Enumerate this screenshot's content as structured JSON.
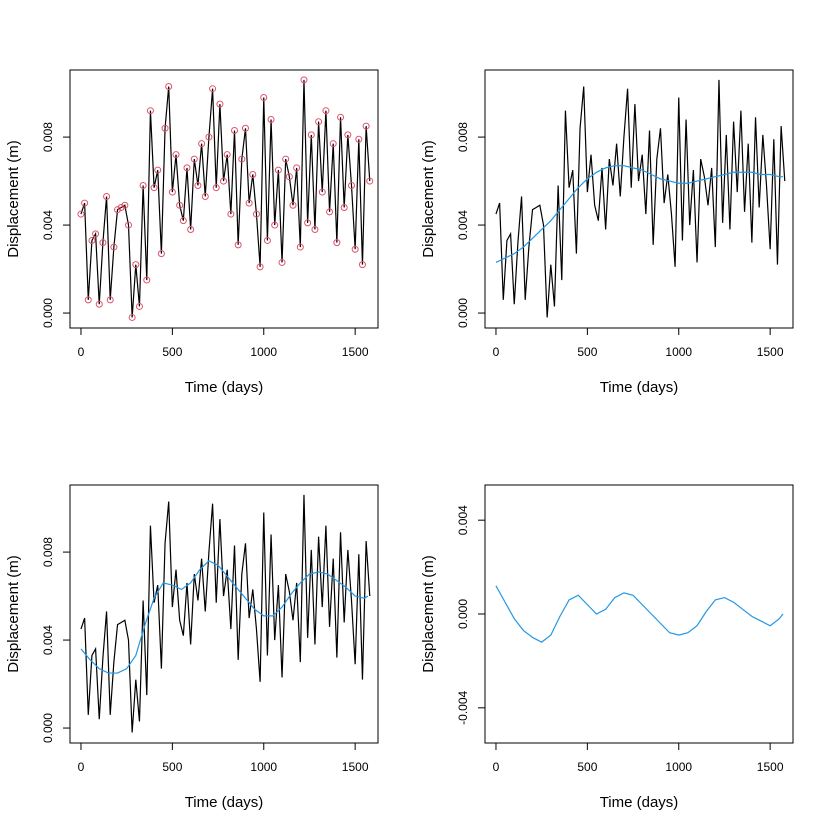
{
  "chart_data": [
    {
      "type": "line",
      "xlabel": "Time (days)",
      "ylabel": "Displacement (m)",
      "xlim": [
        -60,
        1625
      ],
      "ylim": [
        -0.00068,
        0.01105
      ],
      "xticks": [
        0,
        500,
        1000,
        1500
      ],
      "yticks": [
        {
          "value": 0,
          "label": "0.000"
        },
        {
          "value": 0.004,
          "label": "0.004"
        },
        {
          "value": 0.008,
          "label": "0.008"
        }
      ],
      "series": [
        {
          "color": "#000000",
          "marker_color": "#df536b",
          "x": [
            0,
            20,
            40,
            60,
            80,
            100,
            120,
            140,
            160,
            180,
            200,
            220,
            240,
            260,
            280,
            300,
            320,
            340,
            360,
            380,
            400,
            420,
            440,
            460,
            480,
            500,
            520,
            540,
            560,
            580,
            600,
            620,
            640,
            660,
            680,
            700,
            720,
            740,
            760,
            780,
            800,
            820,
            840,
            860,
            880,
            900,
            920,
            940,
            960,
            980,
            1000,
            1020,
            1040,
            1060,
            1080,
            1100,
            1120,
            1140,
            1160,
            1180,
            1200,
            1220,
            1240,
            1260,
            1280,
            1300,
            1320,
            1340,
            1360,
            1380,
            1400,
            1420,
            1440,
            1460,
            1480,
            1500,
            1520,
            1540,
            1560,
            1580
          ],
          "values": [
            0.0045,
            0.005,
            0.0006,
            0.0033,
            0.0036,
            0.0004,
            0.0032,
            0.0053,
            0.0006,
            0.003,
            0.0047,
            0.0048,
            0.0049,
            0.004,
            -0.0002,
            0.0022,
            0.0003,
            0.0058,
            0.0015,
            0.0092,
            0.0057,
            0.0065,
            0.0027,
            0.0084,
            0.0103,
            0.0055,
            0.0072,
            0.0049,
            0.0042,
            0.0066,
            0.0038,
            0.007,
            0.0058,
            0.0077,
            0.0053,
            0.008,
            0.0102,
            0.0057,
            0.0095,
            0.006,
            0.0072,
            0.0045,
            0.0083,
            0.0031,
            0.007,
            0.0084,
            0.005,
            0.0063,
            0.0045,
            0.0021,
            0.0098,
            0.0033,
            0.0088,
            0.004,
            0.0065,
            0.0023,
            0.007,
            0.0062,
            0.0049,
            0.0066,
            0.003,
            0.0106,
            0.0041,
            0.0081,
            0.0038,
            0.0087,
            0.0055,
            0.0092,
            0.0046,
            0.0077,
            0.0032,
            0.0089,
            0.0048,
            0.0081,
            0.0058,
            0.0029,
            0.0079,
            0.0022,
            0.0085,
            0.006
          ]
        }
      ]
    },
    {
      "type": "line",
      "xlabel": "Time (days)",
      "ylabel": "Displacement (m)",
      "xlim": [
        -60,
        1625
      ],
      "ylim": [
        -0.00068,
        0.01105
      ],
      "xticks": [
        0,
        500,
        1000,
        1500
      ],
      "yticks": [
        {
          "value": 0,
          "label": "0.000"
        },
        {
          "value": 0.004,
          "label": "0.004"
        },
        {
          "value": 0.008,
          "label": "0.008"
        }
      ],
      "series": [
        {
          "color": "#000000",
          "x": [
            0,
            20,
            40,
            60,
            80,
            100,
            120,
            140,
            160,
            180,
            200,
            220,
            240,
            260,
            280,
            300,
            320,
            340,
            360,
            380,
            400,
            420,
            440,
            460,
            480,
            500,
            520,
            540,
            560,
            580,
            600,
            620,
            640,
            660,
            680,
            700,
            720,
            740,
            760,
            780,
            800,
            820,
            840,
            860,
            880,
            900,
            920,
            940,
            960,
            980,
            1000,
            1020,
            1040,
            1060,
            1080,
            1100,
            1120,
            1140,
            1160,
            1180,
            1200,
            1220,
            1240,
            1260,
            1280,
            1300,
            1320,
            1340,
            1360,
            1380,
            1400,
            1420,
            1440,
            1460,
            1480,
            1500,
            1520,
            1540,
            1560,
            1580
          ],
          "values": [
            0.0045,
            0.005,
            0.0006,
            0.0033,
            0.0036,
            0.0004,
            0.0032,
            0.0053,
            0.0006,
            0.003,
            0.0047,
            0.0048,
            0.0049,
            0.004,
            -0.0002,
            0.0022,
            0.0003,
            0.0058,
            0.0015,
            0.0092,
            0.0057,
            0.0065,
            0.0027,
            0.0084,
            0.0103,
            0.0055,
            0.0072,
            0.0049,
            0.0042,
            0.0066,
            0.0038,
            0.007,
            0.0058,
            0.0077,
            0.0053,
            0.008,
            0.0102,
            0.0057,
            0.0095,
            0.006,
            0.0072,
            0.0045,
            0.0083,
            0.0031,
            0.007,
            0.0084,
            0.005,
            0.0063,
            0.0045,
            0.0021,
            0.0098,
            0.0033,
            0.0088,
            0.004,
            0.0065,
            0.0023,
            0.007,
            0.0062,
            0.0049,
            0.0066,
            0.003,
            0.0106,
            0.0041,
            0.0081,
            0.0038,
            0.0087,
            0.0055,
            0.0092,
            0.0046,
            0.0077,
            0.0032,
            0.0089,
            0.0048,
            0.0081,
            0.0058,
            0.0029,
            0.0079,
            0.0022,
            0.0085,
            0.006
          ]
        },
        {
          "color": "#2297e6",
          "x": [
            0,
            50,
            100,
            150,
            200,
            250,
            300,
            350,
            400,
            450,
            500,
            550,
            600,
            650,
            700,
            750,
            800,
            850,
            900,
            950,
            1000,
            1050,
            1100,
            1150,
            1200,
            1250,
            1300,
            1350,
            1400,
            1450,
            1500,
            1550,
            1570
          ],
          "values": [
            0.0023,
            0.0025,
            0.0027,
            0.003,
            0.0034,
            0.0038,
            0.0042,
            0.0047,
            0.0052,
            0.0057,
            0.0061,
            0.0064,
            0.0066,
            0.0067,
            0.0067,
            0.0066,
            0.0065,
            0.0063,
            0.0061,
            0.006,
            0.0059,
            0.0059,
            0.006,
            0.0061,
            0.0062,
            0.0063,
            0.0064,
            0.0064,
            0.0064,
            0.0063,
            0.0063,
            0.0062,
            0.0062
          ]
        }
      ]
    },
    {
      "type": "line",
      "xlabel": "Time (days)",
      "ylabel": "Displacement (m)",
      "xlim": [
        -60,
        1625
      ],
      "ylim": [
        -0.00068,
        0.01105
      ],
      "xticks": [
        0,
        500,
        1000,
        1500
      ],
      "yticks": [
        {
          "value": 0,
          "label": "0.000"
        },
        {
          "value": 0.004,
          "label": "0.004"
        },
        {
          "value": 0.008,
          "label": "0.008"
        }
      ],
      "series": [
        {
          "color": "#000000",
          "x": [
            0,
            20,
            40,
            60,
            80,
            100,
            120,
            140,
            160,
            180,
            200,
            220,
            240,
            260,
            280,
            300,
            320,
            340,
            360,
            380,
            400,
            420,
            440,
            460,
            480,
            500,
            520,
            540,
            560,
            580,
            600,
            620,
            640,
            660,
            680,
            700,
            720,
            740,
            760,
            780,
            800,
            820,
            840,
            860,
            880,
            900,
            920,
            940,
            960,
            980,
            1000,
            1020,
            1040,
            1060,
            1080,
            1100,
            1120,
            1140,
            1160,
            1180,
            1200,
            1220,
            1240,
            1260,
            1280,
            1300,
            1320,
            1340,
            1360,
            1380,
            1400,
            1420,
            1440,
            1460,
            1480,
            1500,
            1520,
            1540,
            1560,
            1580
          ],
          "values": [
            0.0045,
            0.005,
            0.0006,
            0.0033,
            0.0036,
            0.0004,
            0.0032,
            0.0053,
            0.0006,
            0.003,
            0.0047,
            0.0048,
            0.0049,
            0.004,
            -0.0002,
            0.0022,
            0.0003,
            0.0058,
            0.0015,
            0.0092,
            0.0057,
            0.0065,
            0.0027,
            0.0084,
            0.0103,
            0.0055,
            0.0072,
            0.0049,
            0.0042,
            0.0066,
            0.0038,
            0.007,
            0.0058,
            0.0077,
            0.0053,
            0.008,
            0.0102,
            0.0057,
            0.0095,
            0.006,
            0.0072,
            0.0045,
            0.0083,
            0.0031,
            0.007,
            0.0084,
            0.005,
            0.0063,
            0.0045,
            0.0021,
            0.0098,
            0.0033,
            0.0088,
            0.004,
            0.0065,
            0.0023,
            0.007,
            0.0062,
            0.0049,
            0.0066,
            0.003,
            0.0106,
            0.0041,
            0.0081,
            0.0038,
            0.0087,
            0.0055,
            0.0092,
            0.0046,
            0.0077,
            0.0032,
            0.0089,
            0.0048,
            0.0081,
            0.0058,
            0.0029,
            0.0079,
            0.0022,
            0.0085,
            0.006
          ]
        },
        {
          "color": "#2297e6",
          "x": [
            0,
            50,
            100,
            150,
            200,
            250,
            300,
            350,
            400,
            450,
            500,
            550,
            600,
            650,
            700,
            750,
            800,
            850,
            900,
            950,
            1000,
            1050,
            1100,
            1150,
            1200,
            1250,
            1300,
            1350,
            1400,
            1450,
            1500,
            1550,
            1570
          ],
          "values": [
            0.0036,
            0.0031,
            0.0027,
            0.0025,
            0.0025,
            0.0027,
            0.0033,
            0.0047,
            0.0059,
            0.0066,
            0.0065,
            0.0063,
            0.0066,
            0.0072,
            0.0076,
            0.0074,
            0.0069,
            0.0064,
            0.0059,
            0.0054,
            0.0051,
            0.0051,
            0.0055,
            0.0061,
            0.0066,
            0.007,
            0.0071,
            0.007,
            0.0067,
            0.0064,
            0.006,
            0.0059,
            0.006
          ]
        }
      ]
    },
    {
      "type": "line",
      "xlabel": "Time (days)",
      "ylabel": "Displacement (m)",
      "xlim": [
        -60,
        1625
      ],
      "ylim": [
        -0.0055,
        0.0055
      ],
      "xticks": [
        0,
        500,
        1000,
        1500
      ],
      "yticks": [
        {
          "value": -0.004,
          "label": "-0.004"
        },
        {
          "value": 0,
          "label": "0.000"
        },
        {
          "value": 0.004,
          "label": "0.004"
        }
      ],
      "series": [
        {
          "color": "#2297e6",
          "x": [
            0,
            50,
            100,
            150,
            200,
            250,
            300,
            350,
            400,
            450,
            500,
            550,
            600,
            650,
            700,
            750,
            800,
            850,
            900,
            950,
            1000,
            1050,
            1100,
            1150,
            1200,
            1250,
            1300,
            1350,
            1400,
            1450,
            1500,
            1550,
            1570
          ],
          "values": [
            0.0012,
            0.0005,
            -0.0002,
            -0.0007,
            -0.001,
            -0.0012,
            -0.0009,
            -0.0001,
            0.0006,
            0.0008,
            0.0004,
            0,
            0.0002,
            0.0007,
            0.0009,
            0.0008,
            0.0004,
            0,
            -0.0004,
            -0.0008,
            -0.0009,
            -0.0008,
            -0.0005,
            0.0001,
            0.0006,
            0.0007,
            0.0005,
            0.0002,
            -0.0001,
            -0.0003,
            -0.0005,
            -0.0002,
            0
          ]
        }
      ]
    }
  ]
}
